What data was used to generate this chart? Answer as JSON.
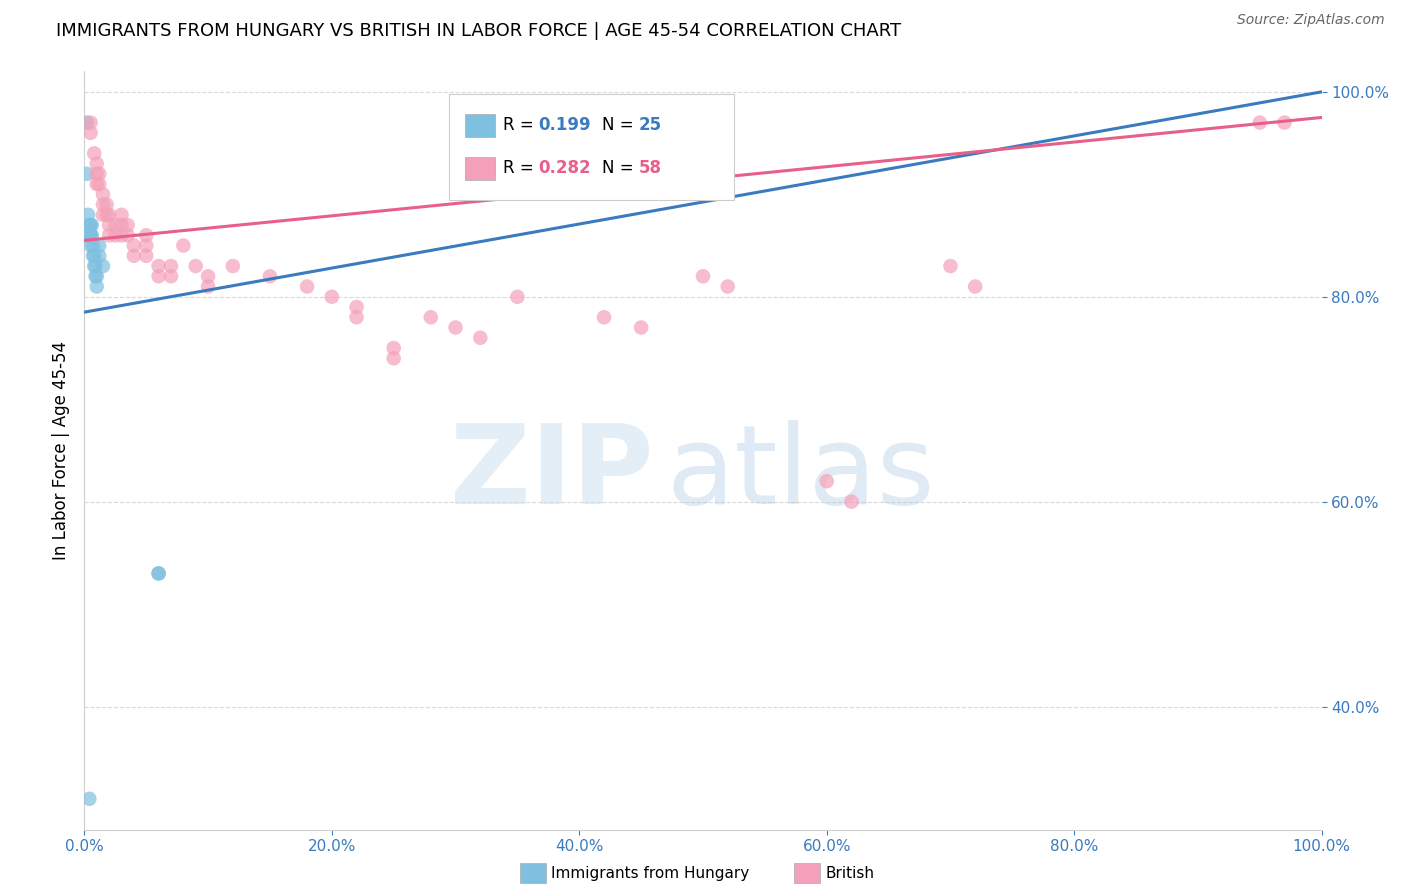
{
  "title": "IMMIGRANTS FROM HUNGARY VS BRITISH IN LABOR FORCE | AGE 45-54 CORRELATION CHART",
  "source": "Source: ZipAtlas.com",
  "ylabel": "In Labor Force | Age 45-54",
  "blue_color": "#7fbfdf",
  "pink_color": "#f4a0b8",
  "blue_line_color": "#3a7bbf",
  "pink_line_color": "#e8608a",
  "legend_blue_r": "0.199",
  "legend_blue_n": "25",
  "legend_pink_r": "0.282",
  "legend_pink_n": "58",
  "legend_blue_label": "Immigrants from Hungary",
  "legend_pink_label": "British",
  "blue_x": [
    0.002,
    0.002,
    0.003,
    0.004,
    0.004,
    0.005,
    0.005,
    0.005,
    0.005,
    0.006,
    0.006,
    0.007,
    0.007,
    0.008,
    0.008,
    0.009,
    0.009,
    0.01,
    0.01,
    0.012,
    0.012,
    0.015,
    0.06,
    0.06,
    0.004
  ],
  "blue_y": [
    0.97,
    0.92,
    0.88,
    0.87,
    0.86,
    0.87,
    0.86,
    0.86,
    0.85,
    0.87,
    0.86,
    0.85,
    0.84,
    0.84,
    0.83,
    0.83,
    0.82,
    0.82,
    0.81,
    0.85,
    0.84,
    0.83,
    0.53,
    0.53,
    0.31
  ],
  "pink_x": [
    0.005,
    0.005,
    0.008,
    0.01,
    0.01,
    0.01,
    0.012,
    0.012,
    0.015,
    0.015,
    0.015,
    0.018,
    0.018,
    0.02,
    0.02,
    0.02,
    0.025,
    0.025,
    0.03,
    0.03,
    0.03,
    0.035,
    0.035,
    0.04,
    0.04,
    0.05,
    0.05,
    0.05,
    0.06,
    0.06,
    0.07,
    0.07,
    0.08,
    0.09,
    0.1,
    0.1,
    0.12,
    0.15,
    0.18,
    0.2,
    0.22,
    0.22,
    0.25,
    0.25,
    0.28,
    0.3,
    0.32,
    0.35,
    0.42,
    0.45,
    0.5,
    0.52,
    0.6,
    0.62,
    0.7,
    0.72,
    0.95,
    0.97
  ],
  "pink_y": [
    0.97,
    0.96,
    0.94,
    0.93,
    0.92,
    0.91,
    0.92,
    0.91,
    0.9,
    0.89,
    0.88,
    0.89,
    0.88,
    0.88,
    0.87,
    0.86,
    0.87,
    0.86,
    0.88,
    0.87,
    0.86,
    0.87,
    0.86,
    0.85,
    0.84,
    0.86,
    0.85,
    0.84,
    0.83,
    0.82,
    0.83,
    0.82,
    0.85,
    0.83,
    0.82,
    0.81,
    0.83,
    0.82,
    0.81,
    0.8,
    0.79,
    0.78,
    0.75,
    0.74,
    0.78,
    0.77,
    0.76,
    0.8,
    0.78,
    0.77,
    0.82,
    0.81,
    0.62,
    0.6,
    0.83,
    0.81,
    0.97,
    0.97
  ],
  "blue_line_x0": 0.0,
  "blue_line_x1": 1.0,
  "blue_line_y0": 0.785,
  "blue_line_y1": 1.0,
  "pink_line_x0": 0.0,
  "pink_line_x1": 1.0,
  "pink_line_y0": 0.855,
  "pink_line_y1": 0.975,
  "xlim": [
    0.0,
    1.0
  ],
  "ylim": [
    0.28,
    1.02
  ],
  "xticks": [
    0.0,
    0.2,
    0.4,
    0.6,
    0.8,
    1.0
  ],
  "yticks": [
    0.4,
    0.6,
    0.8,
    1.0
  ],
  "xtick_labels": [
    "0.0%",
    "20.0%",
    "40.0%",
    "60.0%",
    "80.0%",
    "100.0%"
  ],
  "ytick_labels": [
    "40.0%",
    "60.0%",
    "80.0%",
    "100.0%"
  ]
}
